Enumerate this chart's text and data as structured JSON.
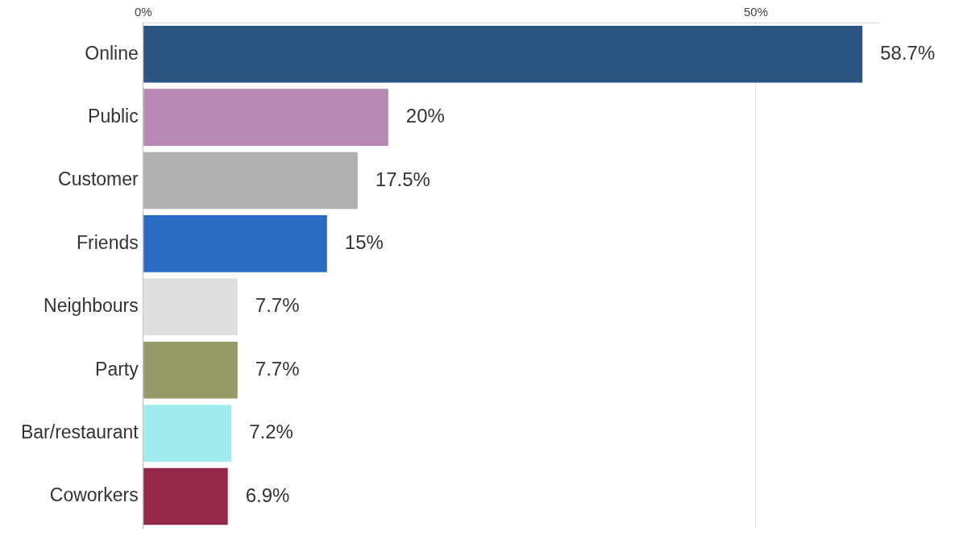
{
  "chart_data": {
    "type": "bar",
    "orientation": "horizontal",
    "categories": [
      "Online",
      "Public",
      "Customer",
      "Friends",
      "Neighbours",
      "Party",
      "Bar/restaurant",
      "Coworkers"
    ],
    "values": [
      58.7,
      20,
      17.5,
      15,
      7.7,
      7.7,
      7.2,
      6.9
    ],
    "colors": [
      "#2b5480",
      "#b788b4",
      "#b0b0b0",
      "#2a6bc4",
      "#dedede",
      "#959a68",
      "#a0ecee",
      "#952748"
    ],
    "value_labels": [
      "58.7%",
      "20%",
      "17.5%",
      "15%",
      "7.7%",
      "7.7%",
      "7.2%",
      "6.9%"
    ],
    "xlim": [
      0,
      60
    ],
    "xticks": [
      {
        "value": 0,
        "label": "0%"
      },
      {
        "value": 50,
        "label": "50%"
      }
    ],
    "grid": "x",
    "legend": false
  }
}
